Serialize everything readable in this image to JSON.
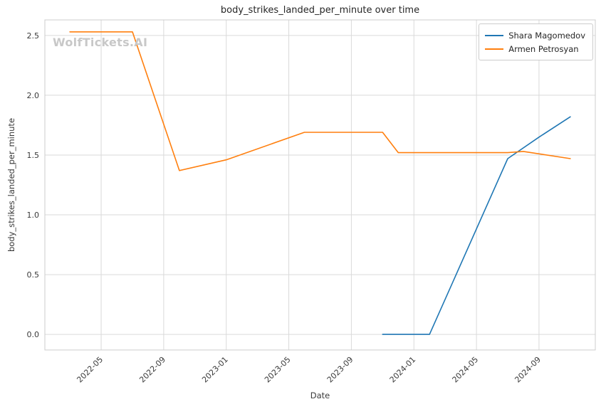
{
  "watermark": "WolfTickets.AI",
  "chart_data": {
    "type": "line",
    "title": "body_strikes_landed_per_minute over time",
    "xlabel": "Date",
    "ylabel": "body_strikes_landed_per_minute",
    "x_tick_labels": [
      "2022-05",
      "2022-09",
      "2023-01",
      "2023-05",
      "2023-09",
      "2024-01",
      "2024-05",
      "2024-09"
    ],
    "y_ticks": [
      0.0,
      0.5,
      1.0,
      1.5,
      2.0,
      2.5
    ],
    "ylim": [
      -0.13,
      2.63
    ],
    "xlim_months": [
      0.4,
      35.6
    ],
    "x_epoch_year": 2022,
    "grid": true,
    "legend_position": "upper right",
    "series": [
      {
        "name": "Shara Magomedov",
        "color": "#1f77b4",
        "points": [
          {
            "date": "2023-11",
            "value": 0.0
          },
          {
            "date": "2024-02",
            "value": 0.0
          },
          {
            "date": "2024-07",
            "value": 1.47
          },
          {
            "date": "2024-09",
            "value": 1.65
          },
          {
            "date": "2024-11",
            "value": 1.82
          }
        ]
      },
      {
        "name": "Armen Petrosyan",
        "color": "#ff7f0e",
        "points": [
          {
            "date": "2022-03",
            "value": 2.53
          },
          {
            "date": "2022-07",
            "value": 2.53
          },
          {
            "date": "2022-10",
            "value": 1.37
          },
          {
            "date": "2023-01",
            "value": 1.46
          },
          {
            "date": "2023-06",
            "value": 1.69
          },
          {
            "date": "2023-11",
            "value": 1.69
          },
          {
            "date": "2023-12",
            "value": 1.52
          },
          {
            "date": "2024-07",
            "value": 1.52
          },
          {
            "date": "2024-08",
            "value": 1.53
          },
          {
            "date": "2024-11",
            "value": 1.47
          }
        ]
      }
    ],
    "colors": {
      "grid": "#dadada",
      "spine": "#cccccc",
      "tick_label": "#3a3a3a",
      "title": "#262626",
      "watermark": "#c8c8c8"
    }
  }
}
